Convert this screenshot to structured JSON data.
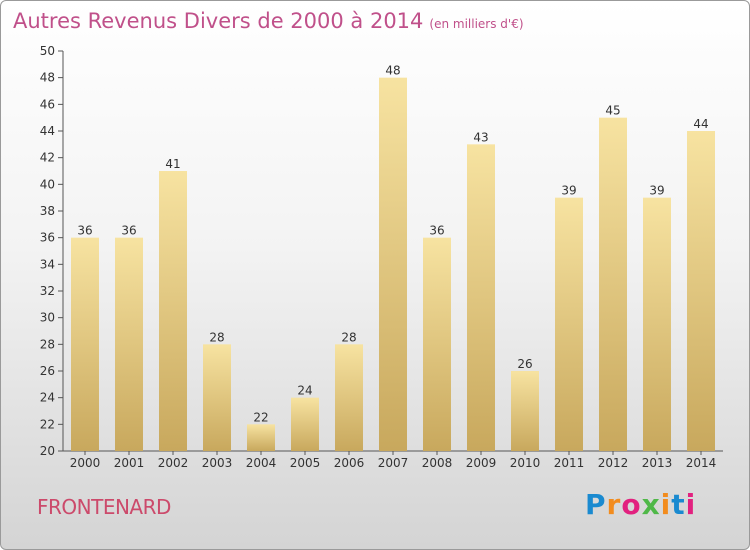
{
  "chart_data": {
    "type": "bar",
    "title": "Autres Revenus Divers de 2000 à 2014",
    "unit_note": "(en milliers d'€)",
    "categories": [
      "2000",
      "2001",
      "2002",
      "2003",
      "2004",
      "2005",
      "2006",
      "2007",
      "2008",
      "2009",
      "2010",
      "2011",
      "2012",
      "2013",
      "2014"
    ],
    "values": [
      36,
      36,
      41,
      28,
      22,
      24,
      28,
      48,
      36,
      43,
      26,
      39,
      45,
      39,
      44
    ],
    "ylim": [
      20,
      50
    ],
    "yticks": [
      20,
      22,
      24,
      26,
      28,
      30,
      32,
      34,
      36,
      38,
      40,
      42,
      44,
      46,
      48,
      50
    ],
    "grid": false,
    "bar_color_top": "#f7e3a1",
    "bar_color_bottom": "#c8a85d"
  },
  "footer": {
    "commune": "FRONTENARD",
    "brand": "Proxiti",
    "brand_colors": [
      "#1a8ad0",
      "#f28c1e",
      "#e2217f",
      "#4fb848",
      "#f28c1e",
      "#1a8ad0",
      "#e2217f"
    ]
  }
}
